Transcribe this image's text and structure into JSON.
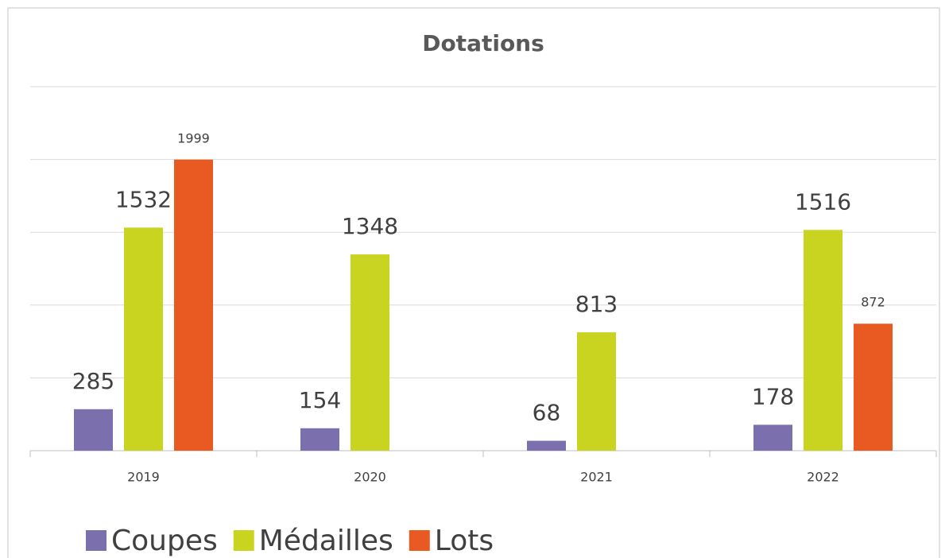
{
  "chart_data": {
    "type": "bar",
    "title": "Dotations",
    "categories": [
      "2019",
      "2020",
      "2021",
      "2022"
    ],
    "series": [
      {
        "name": "Coupes",
        "color": "#7b6fad",
        "values": [
          285,
          154,
          68,
          178
        ]
      },
      {
        "name": "Médailles",
        "color": "#c9d421",
        "values": [
          1532,
          1348,
          813,
          1516
        ]
      },
      {
        "name": "Lots",
        "color": "#e85a22",
        "values": [
          1999,
          null,
          null,
          872
        ]
      }
    ],
    "ylim": [
      0,
      2500
    ],
    "yticks": [
      500,
      1000,
      1500,
      2000,
      2500
    ],
    "grid": true,
    "legend": "bottom"
  }
}
